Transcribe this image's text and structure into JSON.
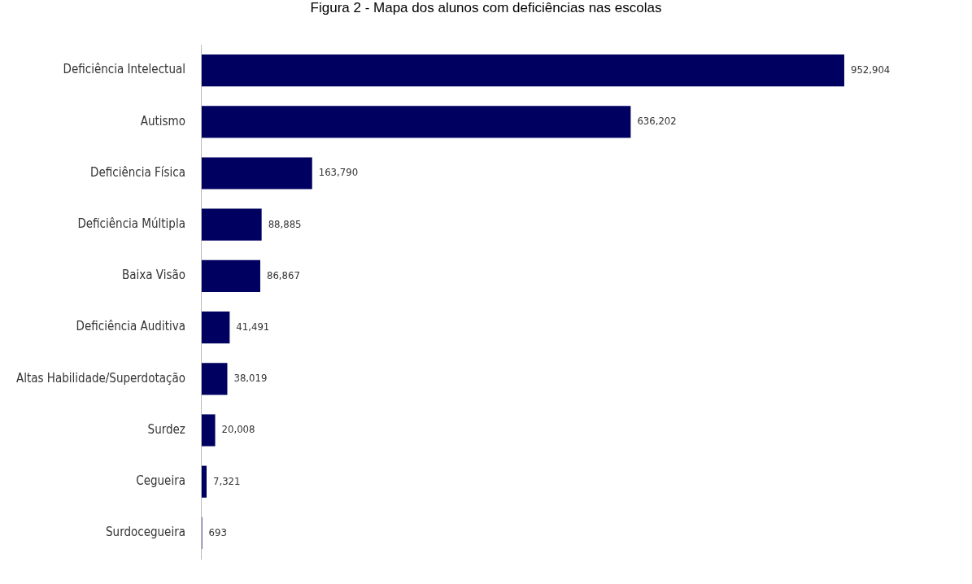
{
  "chart_data": {
    "type": "bar",
    "orientation": "horizontal",
    "title": "Figura 2 - Mapa dos alunos com deficiências nas escolas",
    "categories": [
      "Deficiência Intelectual",
      "Autismo",
      "Deficiência Física",
      "Deficiência Múltipla",
      "Baixa Visão",
      "Deficiência Auditiva",
      "Altas Habilidade/Superdotação",
      "Surdez",
      "Cegueira",
      "Surdocegueira"
    ],
    "values": [
      952904,
      636202,
      163790,
      88885,
      86867,
      41491,
      38019,
      20008,
      7321,
      693
    ],
    "value_labels": [
      "952,904",
      "636,202",
      "163,790",
      "88,885",
      "86,867",
      "41,491",
      "38,019",
      "20,008",
      "7,321",
      "693"
    ],
    "color": "#000060",
    "legend": false,
    "tick_labels": "y"
  }
}
